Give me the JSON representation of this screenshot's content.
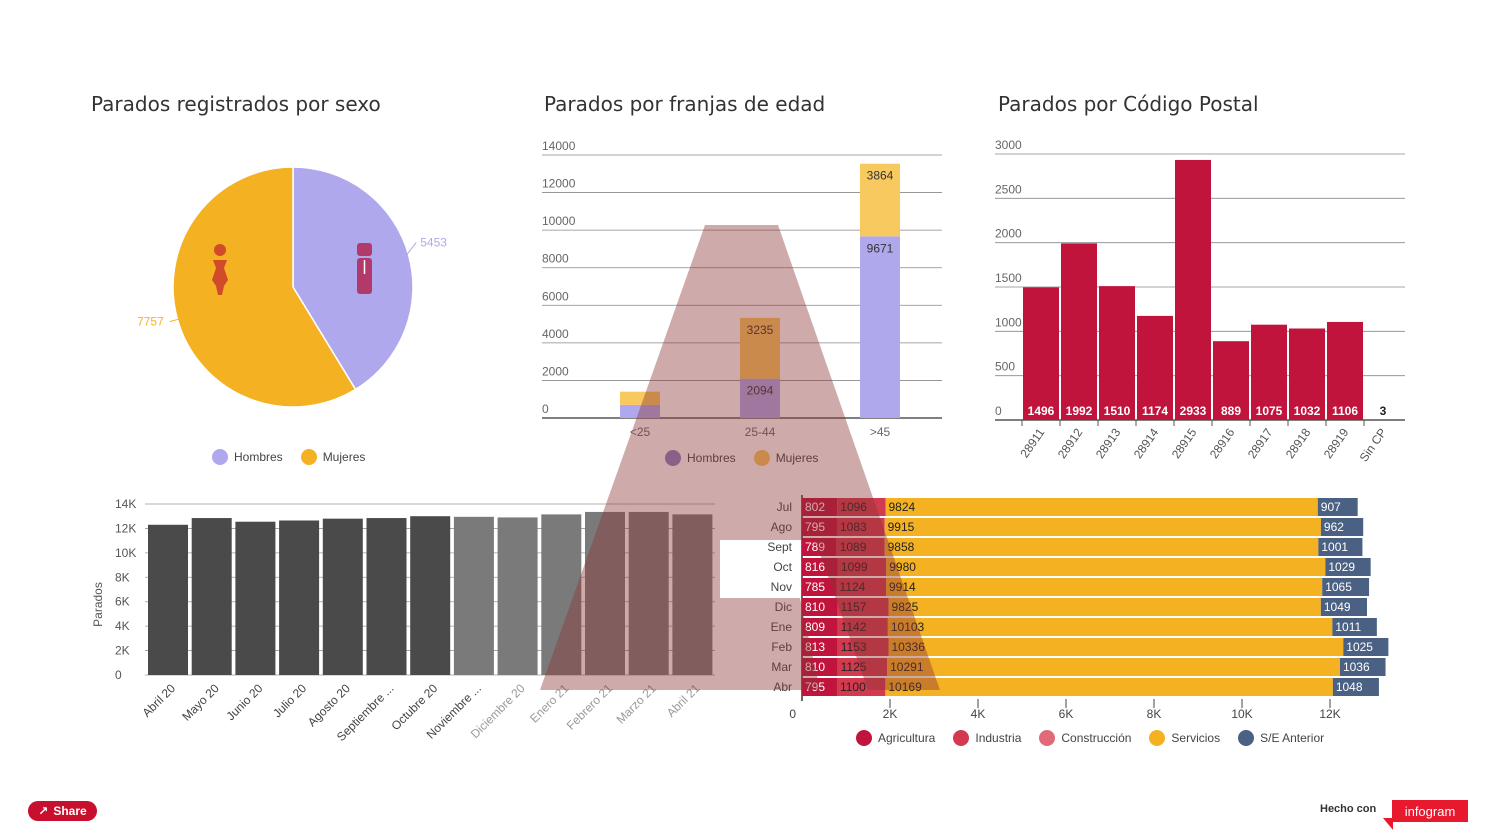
{
  "titles": {
    "sexo": "Parados registrados por sexo",
    "edad": "Parados por franjas de edad",
    "cp": "Parados por Código Postal"
  },
  "colors": {
    "hombres": "#b0a8ec",
    "mujeres": "#f4b223",
    "mujeres_light": "#f8c95e",
    "cp_bar": "#c0143c",
    "monthly_dark": "#4a4a4a",
    "monthly_grey": "#7a7a7a",
    "agricultura": "#c0143c",
    "industria": "#d23a50",
    "construccion": "#e06a78",
    "servicios": "#f4b223",
    "se_anterior": "#4a6183",
    "watermark": "#8b3535"
  },
  "chart_data": [
    {
      "id": "sexo",
      "type": "pie",
      "labels": [
        "Hombres",
        "Mujeres"
      ],
      "values": [
        5453,
        7757
      ],
      "legend_position": "bottom"
    },
    {
      "id": "edad",
      "type": "bar",
      "stacked": true,
      "categories": [
        "<25",
        "25-44",
        ">45"
      ],
      "series": [
        {
          "name": "Hombres",
          "values": [
            700,
            2094,
            9671
          ]
        },
        {
          "name": "Mujeres",
          "values": [
            700,
            3235,
            3864
          ]
        }
      ],
      "ylim": [
        0,
        14000
      ],
      "yticks": [
        "0",
        "2000",
        "4000",
        "6000",
        "8000",
        "10000",
        "12000",
        "14000"
      ],
      "data_labels": [
        {
          "category": "25-44",
          "series": "Hombres",
          "text": "2094"
        },
        {
          "category": "25-44",
          "series": "Mujeres",
          "text": "3235"
        },
        {
          "category": ">45",
          "series": "Hombres",
          "text": "9671"
        },
        {
          "category": ">45",
          "series": "Mujeres",
          "text": "3864"
        }
      ],
      "legend_position": "bottom"
    },
    {
      "id": "cp",
      "type": "bar",
      "categories": [
        "28911",
        "28912",
        "28913",
        "28914",
        "28915",
        "28916",
        "28917",
        "28918",
        "28919",
        "Sin CP"
      ],
      "values": [
        1496,
        1992,
        1510,
        1174,
        2933,
        889,
        1075,
        1032,
        1106,
        3
      ],
      "ylim": [
        0,
        3000
      ],
      "yticks": [
        "0",
        "500",
        "1000",
        "1500",
        "2000",
        "2500",
        "3000"
      ]
    },
    {
      "id": "monthly",
      "type": "bar",
      "categories": [
        "Abril 20",
        "Mayo 20",
        "Junio 20",
        "Julio 20",
        "Agosto 20",
        "Septiembre ...",
        "Octubre 20",
        "Noviembre ...",
        "Diciembre 20",
        "Enero 21",
        "Febrero 21",
        "Marzo 21",
        "Abril 21"
      ],
      "values": [
        12300,
        12850,
        12550,
        12650,
        12800,
        12850,
        13000,
        12950,
        12900,
        13150,
        13350,
        13350,
        13150
      ],
      "ylabel": "Parados",
      "ylim": [
        0,
        14000
      ],
      "yticks": [
        "0",
        "2K",
        "4K",
        "6K",
        "8K",
        "10K",
        "12K",
        "14K"
      ]
    },
    {
      "id": "sectores",
      "type": "bar",
      "orientation": "horizontal",
      "stacked": true,
      "categories": [
        "Jul",
        "Ago",
        "Sept",
        "Oct",
        "Nov",
        "Dic",
        "Ene",
        "Feb",
        "Mar",
        "Abr"
      ],
      "series": [
        {
          "name": "Agricultura",
          "values": [
            802,
            795,
            789,
            816,
            785,
            810,
            809,
            813,
            810,
            795
          ]
        },
        {
          "name": "Industria",
          "values": [
            1096,
            1083,
            1089,
            1099,
            1124,
            1157,
            1142,
            1153,
            1125,
            1100
          ]
        },
        {
          "name": "Construcción",
          "values": [
            0,
            0,
            0,
            0,
            0,
            0,
            0,
            0,
            0,
            0
          ]
        },
        {
          "name": "Servicios",
          "values": [
            9824,
            9915,
            9858,
            9980,
            9914,
            9825,
            10103,
            10336,
            10291,
            10169
          ]
        },
        {
          "name": "S/E Anterior",
          "values": [
            907,
            962,
            1001,
            1029,
            1065,
            1049,
            1011,
            1025,
            1036,
            1048
          ]
        }
      ],
      "xlim": [
        0,
        14000
      ],
      "xticks": [
        "0",
        "2K",
        "4K",
        "6K",
        "8K",
        "10K",
        "12K"
      ],
      "legend_position": "bottom"
    }
  ],
  "legend_sexo": [
    "Hombres",
    "Mujeres"
  ],
  "legend_edad": [
    "Hombres",
    "Mujeres"
  ],
  "legend_sectores": [
    "Agricultura",
    "Industria",
    "Construcción",
    "Servicios",
    "S/E Anterior"
  ],
  "footer": {
    "share_label": "Share",
    "made_with": "Hecho con",
    "brand": "infogram"
  }
}
